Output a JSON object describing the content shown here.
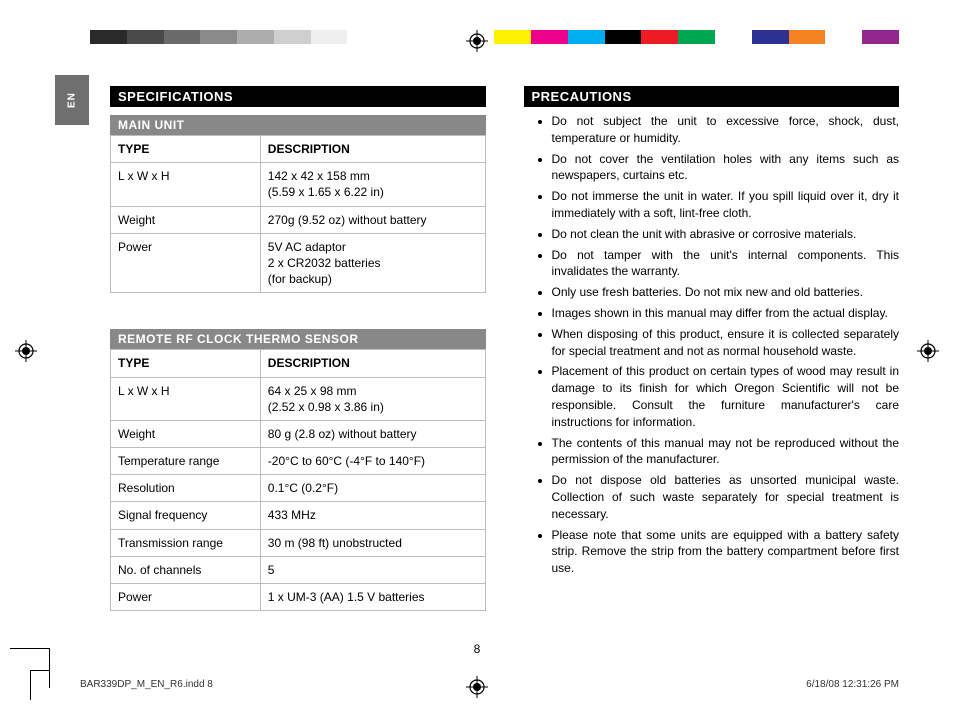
{
  "lang_tab": "EN",
  "reg_colors": [
    "#2a2a2a",
    "#4a4a4a",
    "#6a6a6a",
    "#8a8a8a",
    "#adadad",
    "#cfcfcf",
    "#efefef",
    "#ffffff",
    "#ffffff",
    "#ffffff",
    "#ffffff",
    "#fff200",
    "#ec008c",
    "#00aeef",
    "#000000",
    "#ed1c24",
    "#00a651",
    "#ffffff",
    "#2e3192",
    "#f58220",
    "#ffffff",
    "#92278f"
  ],
  "specs": {
    "heading": "SPECIFICATIONS",
    "main_unit": {
      "sub_heading": "MAIN UNIT",
      "columns": [
        "TYPE",
        "DESCRIPTION"
      ],
      "rows": [
        [
          "L x W x H",
          "142 x 42 x 158 mm\n(5.59 x 1.65 x 6.22 in)"
        ],
        [
          "Weight",
          "270g (9.52 oz) without battery"
        ],
        [
          "Power",
          "5V AC adaptor\n2 x CR2032 batteries\n(for backup)"
        ]
      ]
    },
    "remote": {
      "sub_heading": "REMOTE RF CLOCK THERMO SENSOR",
      "columns": [
        "TYPE",
        "DESCRIPTION"
      ],
      "rows": [
        [
          "L x W x H",
          "64 x 25 x 98 mm\n(2.52 x 0.98 x 3.86 in)"
        ],
        [
          "Weight",
          "80 g (2.8 oz)  without battery"
        ],
        [
          "Temperature range",
          "-20°C to 60°C (-4°F to 140°F)"
        ],
        [
          "Resolution",
          "0.1°C (0.2°F)"
        ],
        [
          "Signal frequency",
          "433 MHz"
        ],
        [
          "Transmission range",
          "30 m (98 ft) unobstructed"
        ],
        [
          "No. of channels",
          "5"
        ],
        [
          "Power",
          "1 x UM-3 (AA) 1.5 V batteries"
        ]
      ]
    }
  },
  "precautions": {
    "heading": "PRECAUTIONS",
    "items": [
      "Do not subject the unit to excessive force, shock, dust, temperature or humidity.",
      "Do not cover the ventilation holes with any items such as newspapers, curtains etc.",
      "Do not immerse the unit in water. If you spill liquid over it, dry it immediately with a soft, lint-free cloth.",
      "Do not clean the unit with abrasive or corrosive materials.",
      "Do not tamper with the unit's internal components. This invalidates the warranty.",
      "Only use fresh batteries. Do not mix new and old batteries.",
      "Images shown in this manual may differ from the actual display.",
      "When disposing of this product, ensure it is collected separately for special treatment and not as normal household waste.",
      "Placement of this product on certain types of wood may result in damage to its finish for which Oregon Scientific will not be responsible. Consult the furniture manufacturer's care instructions for information.",
      "The contents of this manual may not be reproduced without the permission of the manufacturer.",
      "Do not dispose old batteries as unsorted municipal waste. Collection of such waste separately for special treatment is necessary.",
      "Please note that some units are equipped with a battery safety strip. Remove the strip from the battery compartment before first use."
    ]
  },
  "page_number": "8",
  "footer": {
    "left": "BAR339DP_M_EN_R6.indd   8",
    "right": "6/18/08   12:31:26 PM"
  }
}
